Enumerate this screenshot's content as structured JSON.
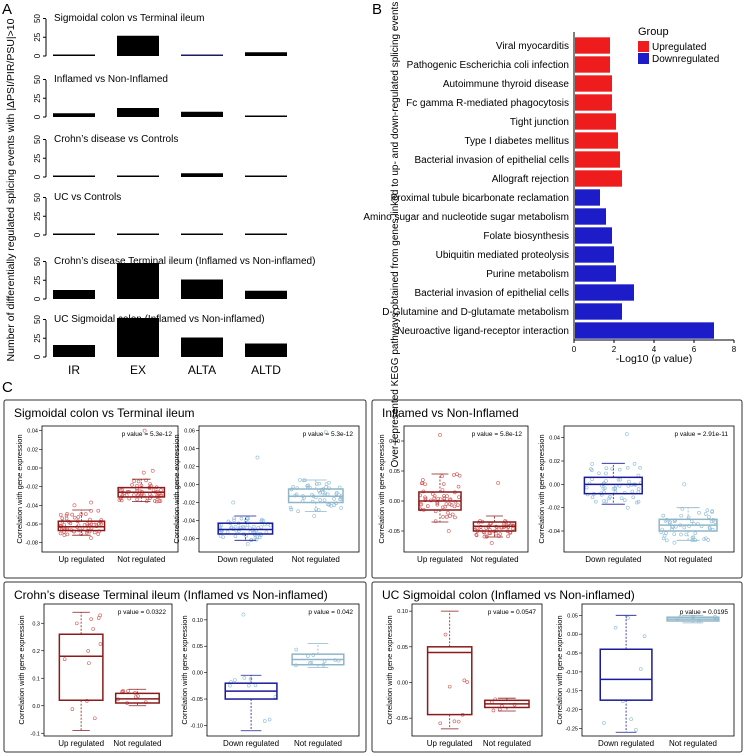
{
  "panel_labels": {
    "a": "A",
    "b": "B",
    "c": "C"
  },
  "colors": {
    "up": "#ee1c1c",
    "down": "#1c1cc8",
    "bar": "#000000",
    "box_red": "#8b1a1a",
    "box_blue": "#1a1a9a",
    "box_light": "#8fb6c8",
    "pt_red": "#d25a5a",
    "pt_blue": "#8fbcd8"
  },
  "chart_data": [
    {
      "id": "A",
      "type": "bar",
      "ylabel": "Number of differentially regulated splicing events with |ΔPSI/PIR/PSU|>10",
      "categories": [
        "IR",
        "EX",
        "ALTA",
        "ALTD"
      ],
      "yticks": [
        "0",
        "25",
        "50"
      ],
      "ylim": [
        0,
        60
      ],
      "series": [
        {
          "name": "Sigmoidal colon vs Terminal ileum",
          "values": [
            2,
            27,
            2,
            5
          ]
        },
        {
          "name": "Inflamed  vs Non-Inflamed",
          "values": [
            5,
            12,
            7,
            1
          ]
        },
        {
          "name": "Crohn’s disease vs Controls",
          "values": [
            1,
            1,
            5,
            1
          ]
        },
        {
          "name": "UC vs Controls",
          "values": [
            1,
            1,
            1,
            1
          ]
        },
        {
          "name": "Crohn’s disease Terminal ileum (Inflamed vs Non-inflamed)",
          "values": [
            12,
            48,
            26,
            11
          ]
        },
        {
          "name": "UC Sigmoidal colon (Inflamed vs Non-inflamed)",
          "values": [
            16,
            52,
            26,
            18
          ]
        }
      ]
    },
    {
      "id": "B",
      "type": "bar",
      "orientation": "horizontal",
      "ylabel": "Over-represented KEGG pathways obtained from genes linked to up- and down-regulated splicing events (|ΔPSI/PIR/PSU|>10)",
      "xlabel": "-Log10 (p value)",
      "xticks": [
        "0",
        "2",
        "4",
        "6",
        "8"
      ],
      "xlim": [
        0,
        8
      ],
      "legend": {
        "title": "Group",
        "entries": [
          "Upregulated",
          "Downregulated"
        ],
        "placement": "top-right"
      },
      "pathways": [
        {
          "name": "Viral myocarditis",
          "value": 1.8,
          "group": "Upregulated"
        },
        {
          "name": "Pathogenic Escherichia coli infection",
          "value": 1.8,
          "group": "Upregulated"
        },
        {
          "name": "Autoimmune thyroid disease",
          "value": 1.9,
          "group": "Upregulated"
        },
        {
          "name": "Fc gamma R-mediated phagocytosis",
          "value": 1.9,
          "group": "Upregulated"
        },
        {
          "name": "Tight junction",
          "value": 2.1,
          "group": "Upregulated"
        },
        {
          "name": "Type I diabetes mellitus",
          "value": 2.2,
          "group": "Upregulated"
        },
        {
          "name": "Bacterial invasion of epithelial cells",
          "value": 2.3,
          "group": "Upregulated"
        },
        {
          "name": "Allograft rejection",
          "value": 2.4,
          "group": "Upregulated"
        },
        {
          "name": "Proximal tubule bicarbonate reclamation",
          "value": 1.3,
          "group": "Downregulated"
        },
        {
          "name": "Amino sugar and nucleotide sugar metabolism",
          "value": 1.6,
          "group": "Downregulated"
        },
        {
          "name": "Folate biosynthesis",
          "value": 1.9,
          "group": "Downregulated"
        },
        {
          "name": "Ubiquitin mediated proteolysis",
          "value": 2.0,
          "group": "Downregulated"
        },
        {
          "name": "Purine metabolism",
          "value": 2.1,
          "group": "Downregulated"
        },
        {
          "name": "Bacterial invasion of epithelial cells",
          "value": 3.0,
          "group": "Downregulated"
        },
        {
          "name": "D-Glutamine and D-glutamate metabolism",
          "value": 2.4,
          "group": "Downregulated"
        },
        {
          "name": "Neuroactive ligand-receptor interaction",
          "value": 7.0,
          "group": "Downregulated"
        }
      ]
    },
    {
      "id": "C",
      "type": "boxplot",
      "ylabel": "Correlation with gene expression",
      "comparisons": [
        {
          "title": "Sigmoidal colon vs Terminal ileum",
          "plots": [
            {
              "p": "p value = 5.3e-12",
              "ylim": [
                -0.09,
                0.045
              ],
              "yticks": [
                {
                  "v": -0.08,
                  "t": "-0.08"
                },
                {
                  "v": -0.06,
                  "t": "-0.06"
                },
                {
                  "v": -0.04,
                  "t": "-0.04"
                },
                {
                  "v": -0.02,
                  "t": "-0.02"
                },
                {
                  "v": 0.0,
                  "t": "0.00"
                },
                {
                  "v": 0.02,
                  "t": "0.02"
                },
                {
                  "v": 0.04,
                  "t": "0.04"
                }
              ],
              "groups": [
                {
                  "label": "Up regulated",
                  "box": "red",
                  "pts": "red",
                  "n": 60,
                  "min": -0.072,
                  "q1": -0.067,
                  "med": -0.063,
                  "q3": -0.057,
                  "max": -0.045,
                  "out": [
                    -0.075,
                    -0.037,
                    -0.04
                  ]
                },
                {
                  "label": "Not regulated",
                  "box": "red",
                  "pts": "red",
                  "n": 55,
                  "min": -0.036,
                  "q1": -0.031,
                  "med": -0.026,
                  "q3": -0.021,
                  "max": -0.012,
                  "out": [
                    0.04,
                    -0.005,
                    -0.003
                  ]
                }
              ]
            },
            {
              "p": "p value = 5.3e-12",
              "ylim": [
                -0.075,
                0.065
              ],
              "yticks": [
                {
                  "v": -0.06,
                  "t": "-0.06"
                },
                {
                  "v": -0.04,
                  "t": "-0.04"
                },
                {
                  "v": -0.02,
                  "t": "-0.02"
                },
                {
                  "v": 0.0,
                  "t": "0.00"
                },
                {
                  "v": 0.02,
                  "t": "0.02"
                },
                {
                  "v": 0.04,
                  "t": "0.04"
                },
                {
                  "v": 0.06,
                  "t": "0.06"
                }
              ],
              "groups": [
                {
                  "label": "Down regulated",
                  "box": "blue",
                  "pts": "blue",
                  "n": 60,
                  "min": -0.062,
                  "q1": -0.055,
                  "med": -0.05,
                  "q3": -0.043,
                  "max": -0.035,
                  "out": [
                    -0.066,
                    0.03,
                    -0.02
                  ]
                },
                {
                  "label": "Not regulated",
                  "box": "light",
                  "pts": "blue",
                  "n": 55,
                  "min": -0.03,
                  "q1": -0.02,
                  "med": -0.013,
                  "q3": -0.005,
                  "max": 0.005,
                  "out": [
                    0.058,
                    -0.035
                  ]
                }
              ]
            }
          ]
        },
        {
          "title": "Inflamed  vs Non-Inflamed",
          "plots": [
            {
              "p": "p value = 5.8e-12",
              "ylim": [
                -0.085,
                0.125
              ],
              "yticks": [
                {
                  "v": -0.05,
                  "t": "-0.05"
                },
                {
                  "v": 0.0,
                  "t": "0.00"
                },
                {
                  "v": 0.05,
                  "t": "0.05"
                },
                {
                  "v": 0.1,
                  "t": "0.10"
                }
              ],
              "groups": [
                {
                  "label": "Up regulated",
                  "box": "red",
                  "pts": "red",
                  "n": 55,
                  "min": -0.035,
                  "q1": -0.015,
                  "med": 0.0,
                  "q3": 0.015,
                  "max": 0.045,
                  "out": [
                    0.11,
                    -0.05
                  ]
                },
                {
                  "label": "Not regulated",
                  "box": "red",
                  "pts": "red",
                  "n": 50,
                  "min": -0.06,
                  "q1": -0.05,
                  "med": -0.042,
                  "q3": -0.035,
                  "max": -0.025,
                  "out": [
                    0.03,
                    -0.07
                  ]
                }
              ]
            },
            {
              "p": "p value = 2.91e-11",
              "ylim": [
                -0.058,
                0.05
              ],
              "yticks": [
                {
                  "v": -0.04,
                  "t": "-0.04"
                },
                {
                  "v": -0.02,
                  "t": "-0.02"
                },
                {
                  "v": 0.0,
                  "t": "0.00"
                },
                {
                  "v": 0.02,
                  "t": "0.02"
                },
                {
                  "v": 0.04,
                  "t": "0.04"
                }
              ],
              "groups": [
                {
                  "label": "Down regulated",
                  "box": "blue",
                  "pts": "blue",
                  "n": 55,
                  "min": -0.017,
                  "q1": -0.008,
                  "med": 0.0,
                  "q3": 0.006,
                  "max": 0.018,
                  "out": [
                    0.043,
                    -0.02
                  ]
                },
                {
                  "label": "Not regulated",
                  "box": "light",
                  "pts": "blue",
                  "n": 50,
                  "min": -0.048,
                  "q1": -0.04,
                  "med": -0.035,
                  "q3": -0.03,
                  "max": -0.02,
                  "out": [
                    0.0,
                    -0.05
                  ]
                }
              ]
            }
          ]
        },
        {
          "title": "Crohn’s disease Terminal ileum (Inflamed vs Non-inflamed)",
          "plots": [
            {
              "p": "p value = 0.0322",
              "ylim": [
                -0.11,
                0.37
              ],
              "yticks": [
                {
                  "v": -0.1,
                  "t": "-0.1"
                },
                {
                  "v": 0.0,
                  "t": "0.0"
                },
                {
                  "v": 0.1,
                  "t": "0.1"
                },
                {
                  "v": 0.2,
                  "t": "0.2"
                },
                {
                  "v": 0.3,
                  "t": "0.3"
                }
              ],
              "groups": [
                {
                  "label": "Up regulated",
                  "box": "red",
                  "pts": "red",
                  "n": 12,
                  "min": -0.09,
                  "q1": 0.02,
                  "med": 0.18,
                  "q3": 0.26,
                  "max": 0.34,
                  "out": []
                },
                {
                  "label": "Not regulated",
                  "box": "red",
                  "pts": "red",
                  "n": 10,
                  "min": 0.0,
                  "q1": 0.01,
                  "med": 0.025,
                  "q3": 0.045,
                  "max": 0.06,
                  "out": []
                }
              ]
            },
            {
              "p": "p value = 0.042",
              "ylim": [
                -0.12,
                0.13
              ],
              "yticks": [
                {
                  "v": -0.1,
                  "t": "-0.10"
                },
                {
                  "v": -0.05,
                  "t": "-0.05"
                },
                {
                  "v": 0.0,
                  "t": "0.00"
                },
                {
                  "v": 0.05,
                  "t": "0.05"
                },
                {
                  "v": 0.1,
                  "t": "0.10"
                }
              ],
              "groups": [
                {
                  "label": "Down regulated",
                  "box": "blue",
                  "pts": "blue",
                  "n": 10,
                  "min": -0.11,
                  "q1": -0.05,
                  "med": -0.035,
                  "q3": -0.02,
                  "max": -0.005,
                  "out": [
                    0.11
                  ]
                },
                {
                  "label": "Not regulated",
                  "box": "light",
                  "pts": "blue",
                  "n": 10,
                  "min": 0.01,
                  "q1": 0.015,
                  "med": 0.025,
                  "q3": 0.035,
                  "max": 0.055,
                  "out": []
                }
              ]
            }
          ]
        },
        {
          "title": "UC Sigmoidal colon (Inflamed vs Non-inflamed)",
          "plots": [
            {
              "p": "p value = 0.0547",
              "ylim": [
                -0.075,
                0.11
              ],
              "yticks": [
                {
                  "v": -0.05,
                  "t": "-0.05"
                },
                {
                  "v": 0.0,
                  "t": "0.00"
                },
                {
                  "v": 0.05,
                  "t": "0.05"
                },
                {
                  "v": 0.1,
                  "t": "0.10"
                }
              ],
              "groups": [
                {
                  "label": "Up regulated",
                  "box": "red",
                  "pts": "red",
                  "n": 8,
                  "min": -0.065,
                  "q1": -0.045,
                  "med": 0.042,
                  "q3": 0.05,
                  "max": 0.1,
                  "out": []
                },
                {
                  "label": "Not regulated",
                  "box": "red",
                  "pts": "red",
                  "n": 6,
                  "min": -0.04,
                  "q1": -0.035,
                  "med": -0.03,
                  "q3": -0.025,
                  "max": -0.022,
                  "out": []
                }
              ]
            },
            {
              "p": "p value = 0.0195",
              "ylim": [
                -0.27,
                0.08
              ],
              "yticks": [
                {
                  "v": -0.25,
                  "t": "-0.25"
                },
                {
                  "v": -0.2,
                  "t": "-0.20"
                },
                {
                  "v": -0.15,
                  "t": "-0.15"
                },
                {
                  "v": -0.1,
                  "t": "-0.10"
                },
                {
                  "v": -0.05,
                  "t": "-0.05"
                },
                {
                  "v": 0.0,
                  "t": "0.00"
                },
                {
                  "v": 0.05,
                  "t": "0.05"
                }
              ],
              "groups": [
                {
                  "label": "Down regulated",
                  "box": "blue",
                  "pts": "blue",
                  "n": 8,
                  "min": -0.26,
                  "q1": -0.175,
                  "med": -0.12,
                  "q3": -0.04,
                  "max": 0.05,
                  "out": []
                },
                {
                  "label": "Not regulated",
                  "box": "light",
                  "pts": "blue",
                  "n": 6,
                  "min": 0.03,
                  "q1": 0.035,
                  "med": 0.04,
                  "q3": 0.045,
                  "max": 0.05,
                  "out": []
                }
              ]
            }
          ]
        }
      ]
    }
  ]
}
